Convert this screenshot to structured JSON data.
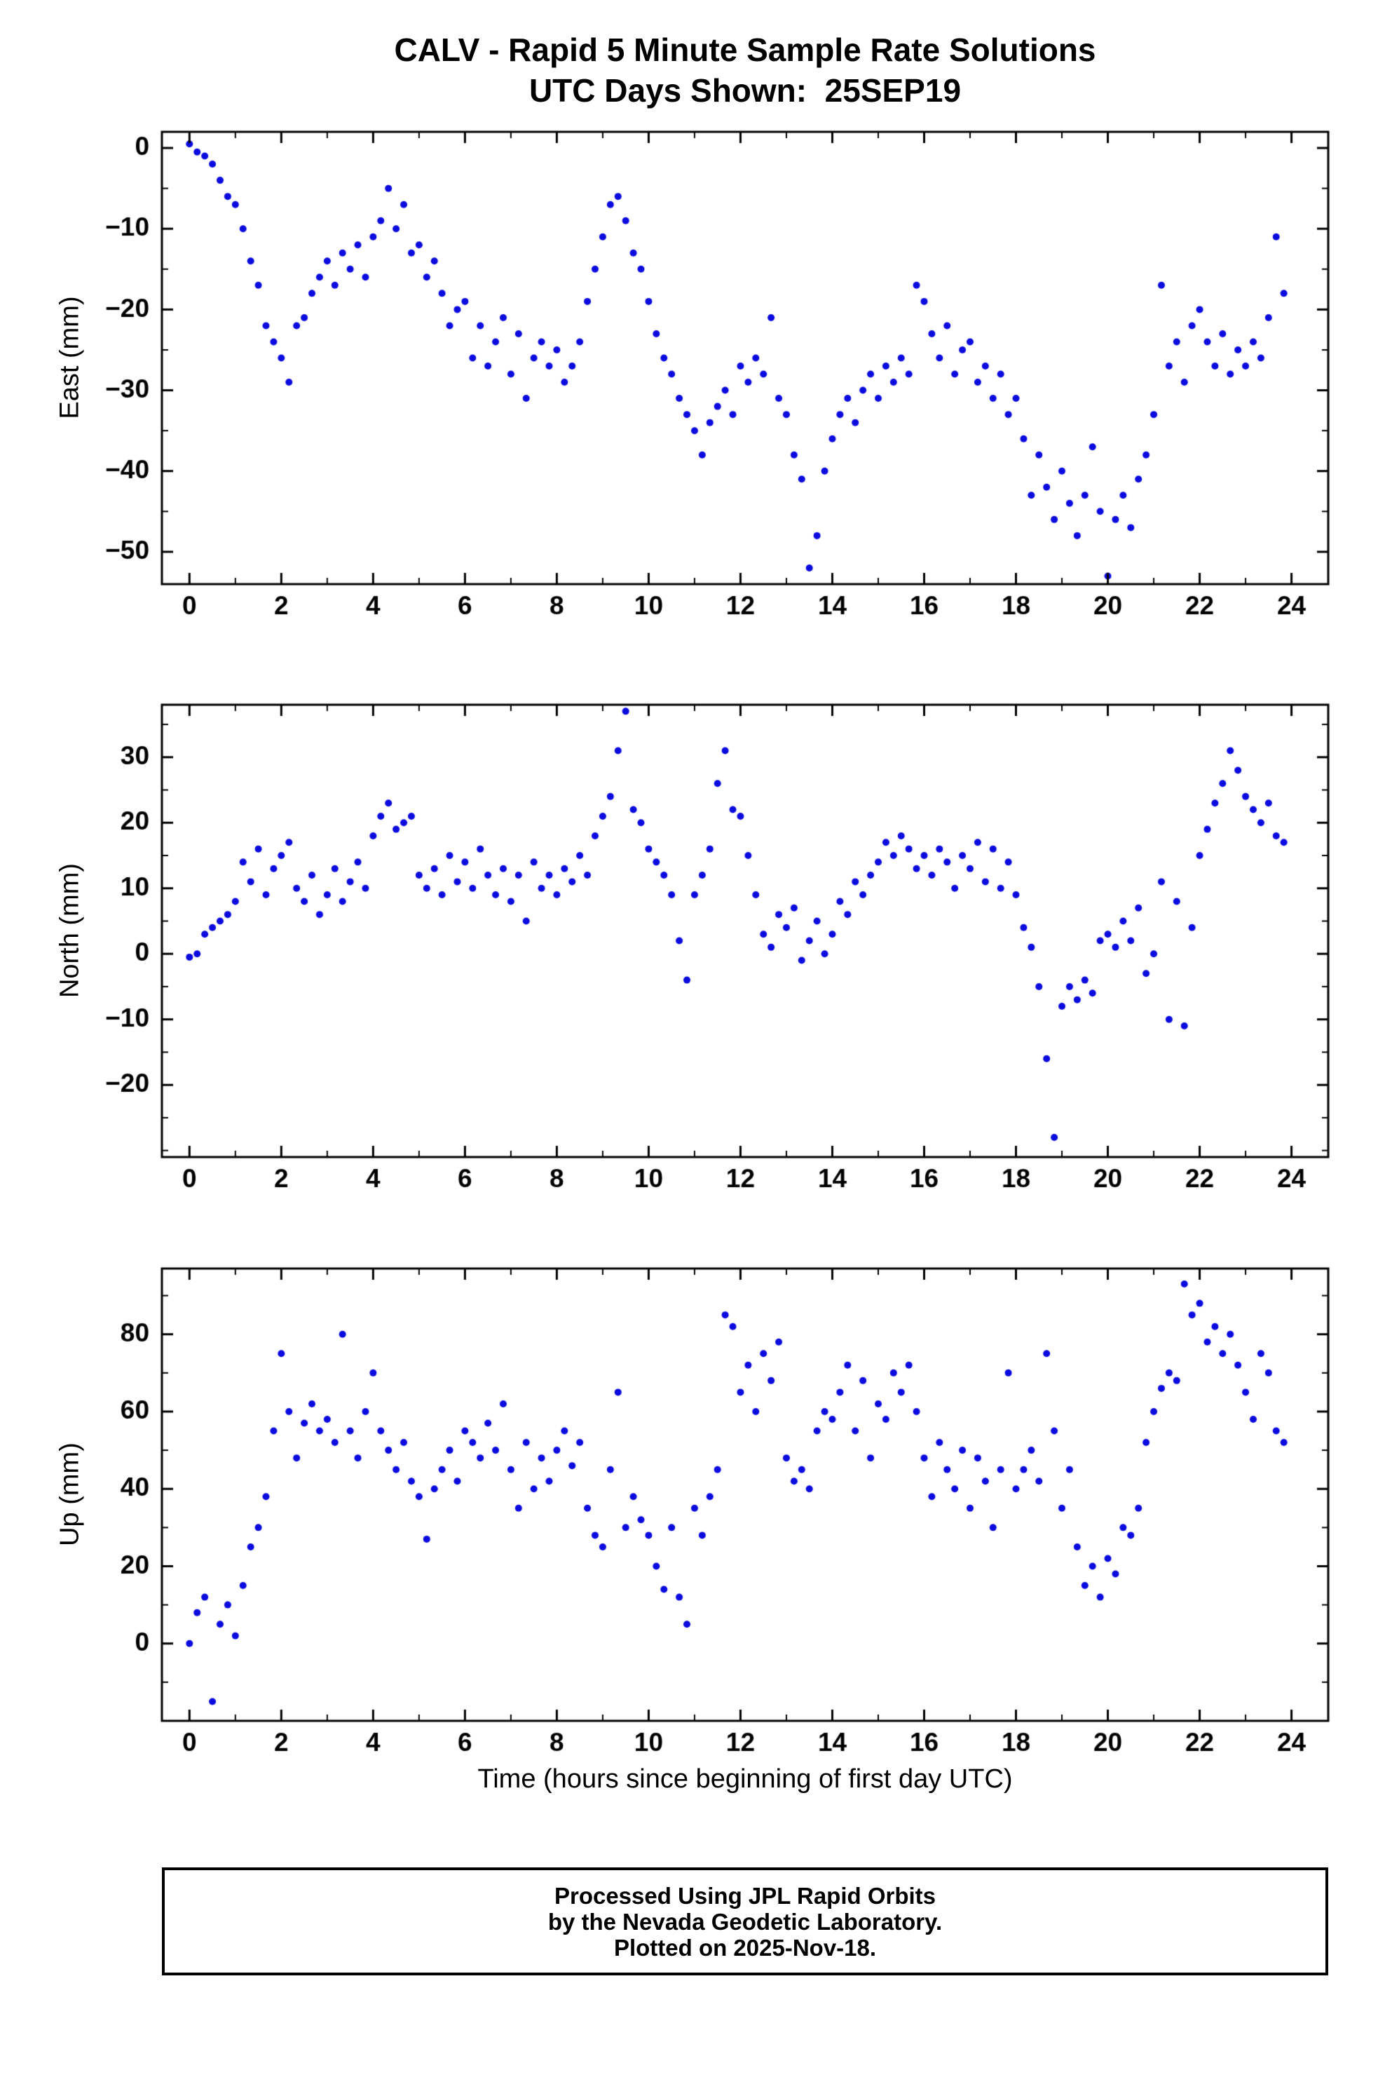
{
  "page": {
    "footer": {
      "line1": "Processed Using JPL Rapid Orbits",
      "line2": "by the Nevada Geodetic Laboratory.",
      "line3": "Plotted on 2025-Nov-18."
    }
  },
  "chart_data": {
    "type": "scatter",
    "title": "CALV - Rapid 5 Minute Sample Rate Solutions",
    "subtitle": "UTC Days Shown:  25SEP19",
    "xlabel": "Time (hours since beginning of first day UTC)",
    "station": "CALV",
    "utc_day_shown": "25SEP19",
    "marker_color": "#0b0be0",
    "marker_radius_px": 5,
    "grid": false,
    "legend": "none",
    "x_range": [
      -0.6,
      24.8
    ],
    "x_major_ticks": [
      0,
      2,
      4,
      6,
      8,
      10,
      12,
      14,
      16,
      18,
      20,
      22,
      24
    ],
    "x_tick_labels": [
      "0",
      "2",
      "4",
      "6",
      "8",
      "10",
      "12",
      "14",
      "16",
      "18",
      "20",
      "22",
      "24"
    ],
    "x_minor_step": 1,
    "panels": [
      {
        "name": "east",
        "ylabel": "East (mm)",
        "ylim": [
          -54,
          2
        ],
        "y_major_ticks": [
          0,
          -10,
          -20,
          -30,
          -40,
          -50
        ],
        "y_tick_labels": [
          "0",
          "−10",
          "−20",
          "−30",
          "−40",
          "−50"
        ],
        "y_minor_step": 5,
        "x_start": 0,
        "x_step": 0.1666667,
        "y": [
          0.5,
          -0.5,
          -1,
          -2,
          -4,
          -6,
          -7,
          -10,
          -14,
          -17,
          -22,
          -24,
          -26,
          -29,
          -22,
          -21,
          -18,
          -16,
          -14,
          -17,
          -13,
          -15,
          -12,
          -16,
          -11,
          -9,
          -5,
          -10,
          -7,
          -13,
          -12,
          -16,
          -14,
          -18,
          -22,
          -20,
          -19,
          -26,
          -22,
          -27,
          -24,
          -21,
          -28,
          -23,
          -31,
          -26,
          -24,
          -27,
          -25,
          -29,
          -27,
          -24,
          -19,
          -15,
          -11,
          -7,
          -6,
          -9,
          -13,
          -15,
          -19,
          -23,
          -26,
          -28,
          -31,
          -33,
          -35,
          -38,
          -34,
          -32,
          -30,
          -33,
          -27,
          -29,
          -26,
          -28,
          -21,
          -31,
          -33,
          -38,
          -41,
          -52,
          -48,
          -40,
          -36,
          -33,
          -31,
          -34,
          -30,
          -28,
          -31,
          -27,
          -29,
          -26,
          -28,
          -17,
          -19,
          -23,
          -26,
          -22,
          -28,
          -25,
          -24,
          -29,
          -27,
          -31,
          -28,
          -33,
          -31,
          -36,
          -43,
          -38,
          -42,
          -46,
          -40,
          -44,
          -48,
          -43,
          -37,
          -45,
          -53,
          -46,
          -43,
          -47,
          -41,
          -38,
          -33,
          -17,
          -27,
          -24,
          -29,
          -22,
          -20,
          -24,
          -27,
          -23,
          -28,
          -25,
          -27,
          -24,
          -26,
          -21,
          -11,
          -18
        ]
      },
      {
        "name": "north",
        "ylabel": "North (mm)",
        "ylim": [
          -31,
          38
        ],
        "y_major_ticks": [
          30,
          20,
          10,
          0,
          -10,
          -20
        ],
        "y_tick_labels": [
          "30",
          "20",
          "10",
          "0",
          "−10",
          "−20"
        ],
        "y_minor_step": 5,
        "x_start": 0,
        "x_step": 0.1666667,
        "y": [
          -0.5,
          0,
          3,
          4,
          5,
          6,
          8,
          14,
          11,
          16,
          9,
          13,
          15,
          17,
          10,
          8,
          12,
          6,
          9,
          13,
          8,
          11,
          14,
          10,
          18,
          21,
          23,
          19,
          20,
          21,
          12,
          10,
          13,
          9,
          15,
          11,
          14,
          10,
          16,
          12,
          9,
          13,
          8,
          12,
          5,
          14,
          10,
          12,
          9,
          13,
          11,
          15,
          12,
          18,
          21,
          24,
          31,
          37,
          22,
          20,
          16,
          14,
          12,
          9,
          2,
          -4,
          9,
          12,
          16,
          26,
          31,
          22,
          21,
          15,
          9,
          3,
          1,
          6,
          4,
          7,
          -1,
          2,
          5,
          0,
          3,
          8,
          6,
          11,
          9,
          12,
          14,
          17,
          15,
          18,
          16,
          13,
          15,
          12,
          16,
          14,
          10,
          15,
          13,
          17,
          11,
          16,
          10,
          14,
          9,
          4,
          1,
          -5,
          -16,
          -28,
          -8,
          -5,
          -7,
          -4,
          -6,
          2,
          3,
          1,
          5,
          2,
          7,
          -3,
          0,
          11,
          -10,
          8,
          -11,
          4,
          15,
          19,
          23,
          26,
          31,
          28,
          24,
          22,
          20,
          23,
          18,
          17
        ]
      },
      {
        "name": "up",
        "ylabel": "Up (mm)",
        "ylim": [
          -20,
          97
        ],
        "y_major_ticks": [
          0,
          20,
          40,
          60,
          80
        ],
        "y_tick_labels": [
          "0",
          "20",
          "40",
          "60",
          "80"
        ],
        "y_minor_step": 10,
        "x_start": 0,
        "x_step": 0.1666667,
        "y": [
          0,
          8,
          12,
          -15,
          5,
          10,
          2,
          15,
          25,
          30,
          38,
          55,
          75,
          60,
          48,
          57,
          62,
          55,
          58,
          52,
          80,
          55,
          48,
          60,
          70,
          55,
          50,
          45,
          52,
          42,
          38,
          27,
          40,
          45,
          50,
          42,
          55,
          52,
          48,
          57,
          50,
          62,
          45,
          35,
          52,
          40,
          48,
          42,
          50,
          55,
          46,
          52,
          35,
          28,
          25,
          45,
          65,
          30,
          38,
          32,
          28,
          20,
          14,
          30,
          12,
          5,
          35,
          28,
          38,
          45,
          85,
          82,
          65,
          72,
          60,
          75,
          68,
          78,
          48,
          42,
          45,
          40,
          55,
          60,
          58,
          65,
          72,
          55,
          68,
          48,
          62,
          58,
          70,
          65,
          72,
          60,
          48,
          38,
          52,
          45,
          40,
          50,
          35,
          48,
          42,
          30,
          45,
          70,
          40,
          45,
          50,
          42,
          75,
          55,
          35,
          45,
          25,
          15,
          20,
          12,
          22,
          18,
          30,
          28,
          35,
          52,
          60,
          66,
          70,
          68,
          93,
          85,
          88,
          78,
          82,
          75,
          80,
          72,
          65,
          58,
          75,
          70,
          55,
          52
        ]
      }
    ]
  }
}
